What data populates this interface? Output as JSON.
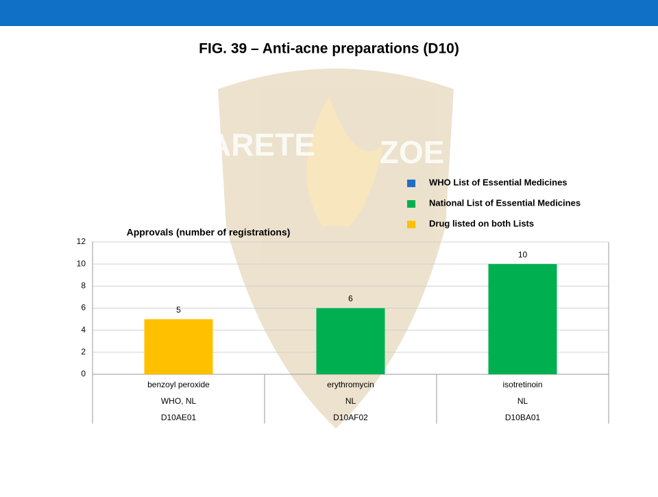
{
  "slide_title": "FIG. 39 – Anti-acne preparations (D10)",
  "watermark": [
    "ARETE",
    "ZOE"
  ],
  "chart_data": {
    "type": "bar",
    "title": "Approvals (number of registrations)",
    "categories": [
      "benzoyl peroxide",
      "erythromycin",
      "isotretinoin"
    ],
    "category_rows": [
      [
        "WHO, NL",
        "NL",
        "NL"
      ],
      [
        "D10AE01",
        "D10AF02",
        "D10BA01"
      ]
    ],
    "values": [
      5,
      6,
      10
    ],
    "colors": [
      "#ffc000",
      "#00b050",
      "#00b050"
    ],
    "ylim": [
      0,
      12
    ],
    "yticks": [
      0,
      2,
      4,
      6,
      8,
      10,
      12
    ],
    "grid": true,
    "legend": [
      {
        "name": "WHO List of Essential Medicines",
        "color": "#1f6fc5"
      },
      {
        "name": "National List of Essential Medicines",
        "color": "#00b050"
      },
      {
        "name": "Drug listed on both Lists",
        "color": "#ffc000"
      }
    ]
  }
}
